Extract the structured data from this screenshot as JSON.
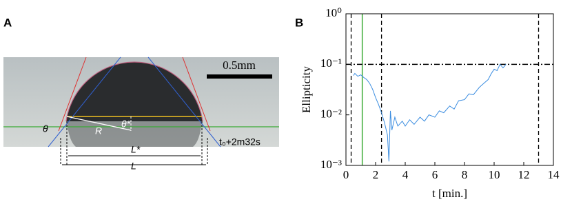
{
  "panel_a": {
    "label": "A",
    "scale_bar": "0.5mm",
    "theta": "θ",
    "theta_star": "θ*",
    "radius": "R",
    "l_star": "L*",
    "l": "L",
    "timestamp": "t₀+2m32s"
  },
  "chart_data": {
    "type": "line",
    "label": "B",
    "ylabel": "Ellipticity",
    "xlabel": "t [min.]",
    "xlim": [
      0,
      14
    ],
    "xticks": [
      0,
      2,
      4,
      6,
      8,
      10,
      12,
      14
    ],
    "ylim": [
      0.001,
      1
    ],
    "log_y": true,
    "yticks": [
      {
        "value": 0.001,
        "label": "10⁻³"
      },
      {
        "value": 0.01,
        "label": "10⁻²"
      },
      {
        "value": 0.1,
        "label": "10⁻¹"
      },
      {
        "value": 1,
        "label": "10⁰"
      }
    ],
    "x": [
      0.5,
      0.6,
      0.8,
      1.0,
      1.2,
      1.4,
      1.6,
      1.8,
      2.0,
      2.2,
      2.4,
      2.6,
      2.8,
      2.9,
      3.0,
      3.1,
      3.3,
      3.5,
      3.8,
      4.0,
      4.3,
      4.6,
      5.0,
      5.3,
      5.6,
      6.0,
      6.3,
      6.6,
      7.0,
      7.3,
      7.6,
      8.0,
      8.3,
      8.6,
      9.0,
      9.3,
      9.6,
      9.8,
      10.0,
      10.2,
      10.4,
      10.6,
      10.8
    ],
    "series": [
      {
        "name": "Ellipticity",
        "color": "#3b8de0",
        "values": [
          0.06,
          0.066,
          0.058,
          0.062,
          0.055,
          0.05,
          0.042,
          0.032,
          0.022,
          0.016,
          0.011,
          0.007,
          0.004,
          0.0012,
          0.012,
          0.005,
          0.009,
          0.006,
          0.0075,
          0.006,
          0.008,
          0.0065,
          0.009,
          0.0075,
          0.01,
          0.009,
          0.012,
          0.011,
          0.015,
          0.013,
          0.019,
          0.02,
          0.026,
          0.025,
          0.035,
          0.042,
          0.05,
          0.065,
          0.08,
          0.075,
          0.1,
          0.085,
          0.1
        ]
      }
    ],
    "reference_lines": {
      "x_dashed": [
        0.35,
        2.4,
        13
      ],
      "x_solid": 1.1,
      "x_solid_color": "#3aaa35",
      "y_dashdot": 0.1
    }
  }
}
